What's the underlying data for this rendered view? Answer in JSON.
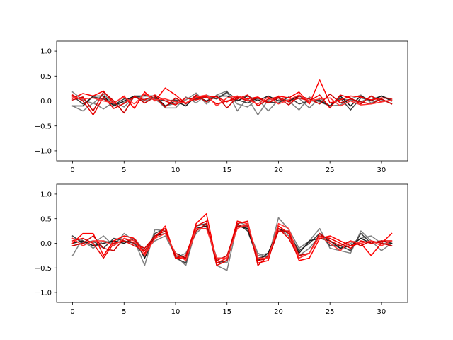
{
  "chart_data": [
    {
      "type": "line",
      "x": [
        0,
        1,
        2,
        3,
        4,
        5,
        6,
        7,
        8,
        9,
        10,
        11,
        12,
        13,
        14,
        15,
        16,
        17,
        18,
        19,
        20,
        21,
        22,
        23,
        24,
        25,
        26,
        27,
        28,
        29,
        30,
        31
      ],
      "xlim": [
        -1.55,
        32.55
      ],
      "ylim": [
        -1.2,
        1.2
      ],
      "xticks": [
        0,
        5,
        10,
        15,
        20,
        25,
        30
      ],
      "yticks": [
        1.0,
        0.5,
        0.0,
        -0.5,
        -1.0
      ],
      "xtick_labels": [
        "0",
        "5",
        "10",
        "15",
        "20",
        "25",
        "30"
      ],
      "ytick_labels": [
        "1.0",
        "0.5",
        "0.0",
        "−0.5",
        "−1.0"
      ],
      "grid": false,
      "series": [
        {
          "color": "#808080",
          "values": [
            0.18,
            0.02,
            -0.05,
            0.14,
            -0.06,
            -0.03,
            0.1,
            0.05,
            0.03,
            -0.1,
            -0.05,
            0.02,
            0.16,
            -0.06,
            0.12,
            0.2,
            -0.2,
            0.06,
            -0.28,
            0.02,
            0.06,
            0.0,
            -0.18,
            0.08,
            -0.02,
            -0.1,
            0.04,
            0.02,
            -0.02,
            0.09,
            0.02,
            -0.05
          ]
        },
        {
          "color": "#808080",
          "values": [
            -0.1,
            -0.2,
            -0.04,
            -0.16,
            -0.02,
            -0.12,
            0.08,
            0.0,
            0.06,
            -0.14,
            -0.14,
            0.08,
            -0.04,
            0.12,
            0.04,
            0.16,
            -0.06,
            -0.12,
            0.04,
            -0.2,
            0.02,
            0.02,
            0.05,
            -0.14,
            0.06,
            -0.1,
            -0.08,
            0.04,
            0.12,
            -0.04,
            0.06,
            0.05
          ]
        },
        {
          "color": "#404040",
          "values": [
            0.1,
            -0.06,
            0.08,
            0.04,
            -0.08,
            0.04,
            0.06,
            0.12,
            0.05,
            0.0,
            0.02,
            -0.04,
            0.04,
            0.08,
            0.04,
            0.18,
            0.02,
            -0.04,
            0.06,
            -0.02,
            -0.04,
            0.08,
            -0.06,
            0.0,
            0.02,
            -0.1,
            0.06,
            -0.18,
            0.06,
            0.02,
            0.1,
            0.02
          ]
        },
        {
          "color": "#1a1a1a",
          "values": [
            -0.1,
            -0.1,
            0.1,
            0.1,
            -0.1,
            0.0,
            0.1,
            0.1,
            0.1,
            -0.1,
            0.0,
            -0.1,
            0.1,
            0.0,
            0.1,
            0.1,
            0.0,
            0.1,
            0.0,
            0.1,
            0.0,
            0.0,
            0.1,
            0.0,
            0.0,
            -0.1,
            0.1,
            -0.1,
            0.1,
            0.0,
            0.1,
            0.0
          ]
        },
        {
          "color": "#ff0000",
          "values": [
            0.05,
            0.15,
            0.1,
            0.2,
            -0.05,
            0.1,
            -0.15,
            0.18,
            0.0,
            0.26,
            0.12,
            -0.05,
            0.06,
            0.1,
            0.08,
            -0.02,
            0.1,
            0.04,
            0.08,
            -0.04,
            0.1,
            0.06,
            0.18,
            -0.06,
            0.42,
            -0.04,
            0.02,
            0.1,
            0.08,
            0.02,
            0.06,
            0.05
          ]
        },
        {
          "color": "#e60000",
          "values": [
            0.12,
            0.0,
            -0.28,
            0.08,
            -0.15,
            -0.05,
            0.08,
            0.02,
            0.12,
            0.0,
            -0.08,
            0.06,
            0.02,
            0.08,
            -0.06,
            0.0,
            0.04,
            0.12,
            -0.1,
            0.04,
            0.08,
            -0.02,
            0.06,
            0.0,
            0.12,
            -0.14,
            0.12,
            0.06,
            -0.06,
            0.1,
            -0.02,
            0.02
          ]
        },
        {
          "color": "#cc0000",
          "values": [
            0.02,
            0.08,
            -0.2,
            0.18,
            0.0,
            -0.24,
            0.1,
            -0.04,
            0.08,
            -0.12,
            0.06,
            -0.06,
            0.12,
            -0.02,
            0.1,
            -0.14,
            0.08,
            0.0,
            0.06,
            -0.04,
            0.06,
            -0.08,
            0.1,
            0.04,
            -0.06,
            0.14,
            -0.04,
            0.04,
            -0.02,
            -0.06,
            0.04,
            -0.06
          ]
        },
        {
          "color": "#ff3333",
          "values": [
            0.08,
            0.04,
            0.06,
            0.0,
            -0.04,
            0.08,
            -0.06,
            0.14,
            0.02,
            0.04,
            -0.02,
            -0.04,
            0.08,
            0.12,
            -0.1,
            0.06,
            0.1,
            0.02,
            -0.06,
            0.08,
            -0.06,
            0.02,
            0.12,
            0.0,
            0.04,
            0.06,
            -0.1,
            0.0,
            -0.08,
            -0.06,
            -0.02,
            0.02
          ]
        }
      ]
    },
    {
      "type": "line",
      "x": [
        0,
        1,
        2,
        3,
        4,
        5,
        6,
        7,
        8,
        9,
        10,
        11,
        12,
        13,
        14,
        15,
        16,
        17,
        18,
        19,
        20,
        21,
        22,
        23,
        24,
        25,
        26,
        27,
        28,
        29,
        30,
        31
      ],
      "xlim": [
        -1.55,
        32.55
      ],
      "ylim": [
        -1.2,
        1.2
      ],
      "xticks": [
        0,
        5,
        10,
        15,
        20,
        25,
        30
      ],
      "yticks": [
        1.0,
        0.5,
        0.0,
        -0.5,
        -1.0
      ],
      "xtick_labels": [
        "0",
        "5",
        "10",
        "15",
        "20",
        "25",
        "30"
      ],
      "ytick_labels": [
        "1.0",
        "0.5",
        "0.0",
        "−0.5",
        "−1.0"
      ],
      "grid": false,
      "series": [
        {
          "color": "#808080",
          "values": [
            -0.25,
            0.1,
            0.0,
            0.15,
            -0.05,
            0.2,
            0.05,
            -0.45,
            0.28,
            0.25,
            -0.3,
            -0.2,
            0.2,
            0.4,
            -0.45,
            -0.55,
            0.38,
            0.3,
            -0.2,
            -0.3,
            0.52,
            0.28,
            -0.1,
            0.05,
            0.3,
            -0.1,
            -0.15,
            -0.2,
            0.25,
            0.05,
            -0.15,
            0.0
          ]
        },
        {
          "color": "#808080",
          "values": [
            0.1,
            0.05,
            -0.1,
            0.05,
            0.0,
            0.15,
            0.1,
            -0.15,
            0.05,
            0.15,
            -0.25,
            -0.45,
            0.3,
            0.35,
            -0.35,
            -0.4,
            0.45,
            0.35,
            -0.25,
            -0.2,
            0.3,
            0.15,
            -0.25,
            -0.1,
            0.15,
            0.0,
            -0.1,
            0.0,
            0.1,
            0.15,
            0.0,
            0.0
          ]
        },
        {
          "color": "#404040",
          "values": [
            0.15,
            0.0,
            0.05,
            -0.1,
            0.1,
            0.05,
            0.0,
            -0.25,
            0.2,
            0.3,
            -0.3,
            -0.4,
            0.35,
            0.4,
            -0.4,
            -0.35,
            0.4,
            0.25,
            -0.3,
            -0.25,
            0.35,
            0.2,
            -0.15,
            0.0,
            0.2,
            -0.05,
            -0.05,
            -0.15,
            0.2,
            0.0,
            0.05,
            0.0
          ]
        },
        {
          "color": "#1a1a1a",
          "values": [
            0.0,
            0.05,
            -0.05,
            0.0,
            0.05,
            0.0,
            0.1,
            -0.3,
            0.15,
            0.2,
            -0.2,
            -0.3,
            0.3,
            0.35,
            -0.3,
            -0.3,
            0.35,
            0.3,
            -0.35,
            -0.2,
            0.3,
            0.2,
            -0.2,
            0.05,
            0.1,
            0.05,
            -0.1,
            -0.05,
            0.1,
            0.0,
            0.05,
            0.0
          ]
        },
        {
          "color": "#ff0000",
          "values": [
            0.0,
            0.2,
            0.2,
            -0.25,
            0.05,
            0.15,
            0.1,
            -0.2,
            0.1,
            0.35,
            -0.3,
            -0.3,
            0.4,
            0.6,
            -0.4,
            -0.3,
            0.45,
            0.4,
            -0.4,
            -0.35,
            0.35,
            0.2,
            -0.35,
            -0.3,
            0.1,
            0.15,
            0.05,
            -0.05,
            0.0,
            -0.25,
            0.0,
            0.2
          ]
        },
        {
          "color": "#e60000",
          "values": [
            0.05,
            0.1,
            0.0,
            -0.3,
            0.0,
            0.05,
            -0.05,
            -0.15,
            0.15,
            0.3,
            -0.3,
            -0.25,
            0.35,
            0.45,
            -0.45,
            -0.35,
            0.4,
            0.45,
            -0.45,
            -0.25,
            0.3,
            0.1,
            -0.3,
            -0.2,
            0.15,
            0.1,
            0.0,
            -0.1,
            0.05,
            0.0,
            0.05,
            0.05
          ]
        },
        {
          "color": "#cc0000",
          "values": [
            -0.05,
            0.0,
            0.15,
            -0.1,
            -0.15,
            0.1,
            0.0,
            -0.1,
            0.15,
            0.25,
            -0.25,
            -0.3,
            0.25,
            0.4,
            -0.35,
            -0.25,
            0.35,
            0.35,
            -0.35,
            -0.3,
            0.25,
            0.25,
            -0.25,
            -0.2,
            0.2,
            0.05,
            -0.05,
            0.05,
            -0.05,
            0.05,
            0.0,
            -0.05
          ]
        },
        {
          "color": "#ff3333",
          "values": [
            0.1,
            -0.05,
            0.05,
            0.05,
            -0.05,
            0.1,
            0.05,
            -0.25,
            0.1,
            0.2,
            -0.2,
            -0.35,
            0.3,
            0.3,
            -0.3,
            -0.3,
            0.3,
            0.4,
            -0.3,
            -0.3,
            0.4,
            0.3,
            -0.3,
            -0.2,
            0.15,
            0.0,
            -0.15,
            0.05,
            0.0,
            0.05,
            -0.05,
            0.05
          ]
        }
      ]
    }
  ]
}
